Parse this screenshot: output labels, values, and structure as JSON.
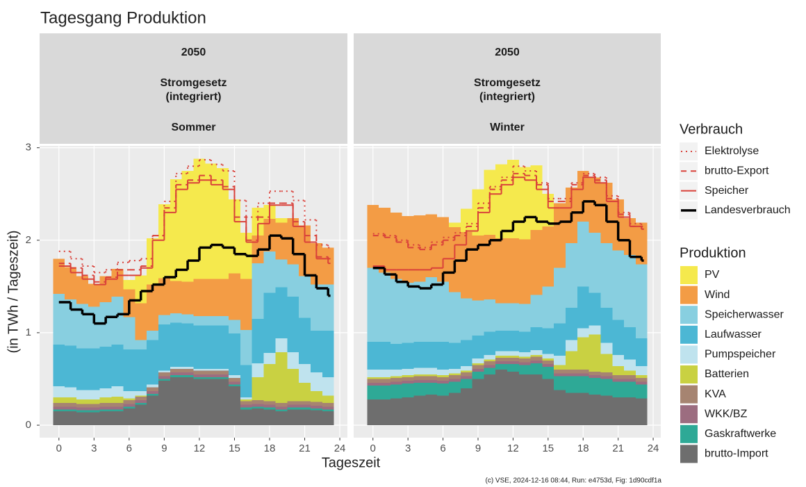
{
  "title": "Tagesgang Produktion",
  "x_label": "Tageszeit",
  "y_label": "(in TWh / Tageszeit)",
  "legend_titles": [
    "Verbrauch",
    "Produktion"
  ],
  "caption": "(c) VSE, 2024-12-16 08:44, Run: e4753d, Fig: 1d90cdf1a",
  "chart_data": [
    {
      "type": "stacked-step-area",
      "strip": [
        "2050",
        "Stromgesetz",
        "(integriert)",
        "Sommer"
      ],
      "x": [
        0,
        1,
        2,
        3,
        4,
        5,
        6,
        7,
        8,
        9,
        10,
        11,
        12,
        13,
        14,
        15,
        16,
        17,
        18,
        19,
        20,
        21,
        22,
        23
      ],
      "xlim": [
        -1.65,
        24.65
      ],
      "xticks": [
        0,
        3,
        6,
        9,
        12,
        15,
        18,
        21,
        24
      ],
      "ylim": [
        -0.135,
        3.02
      ],
      "yticks": [
        0,
        1,
        2,
        3
      ],
      "grid": true,
      "series": [
        {
          "name": "brutto-Import",
          "color": "#6e6e6e",
          "values": [
            0.15,
            0.15,
            0.14,
            0.14,
            0.15,
            0.15,
            0.18,
            0.22,
            0.32,
            0.48,
            0.52,
            0.52,
            0.5,
            0.5,
            0.5,
            0.42,
            0.17,
            0.18,
            0.17,
            0.15,
            0.17,
            0.17,
            0.16,
            0.15
          ]
        },
        {
          "name": "Gaskraftwerke",
          "color": "#2ea996",
          "values": [
            0.02,
            0.02,
            0.02,
            0.02,
            0.02,
            0.02,
            0.02,
            0.02,
            0.02,
            0.02,
            0.02,
            0.02,
            0.02,
            0.02,
            0.02,
            0.02,
            0.02,
            0.02,
            0.02,
            0.02,
            0.02,
            0.02,
            0.02,
            0.02
          ]
        },
        {
          "name": "WKK/BZ",
          "color": "#9c6d80",
          "values": [
            0.03,
            0.03,
            0.03,
            0.03,
            0.03,
            0.03,
            0.03,
            0.03,
            0.03,
            0.03,
            0.03,
            0.03,
            0.03,
            0.03,
            0.03,
            0.03,
            0.03,
            0.03,
            0.03,
            0.03,
            0.03,
            0.03,
            0.03,
            0.03
          ]
        },
        {
          "name": "KVA",
          "color": "#a68471",
          "values": [
            0.04,
            0.04,
            0.04,
            0.04,
            0.04,
            0.04,
            0.04,
            0.04,
            0.04,
            0.04,
            0.04,
            0.04,
            0.04,
            0.04,
            0.04,
            0.04,
            0.04,
            0.04,
            0.04,
            0.04,
            0.04,
            0.04,
            0.04,
            0.04
          ]
        },
        {
          "name": "Batterien",
          "color": "#c9d142",
          "values": [
            0.06,
            0.06,
            0.05,
            0.05,
            0.06,
            0.07,
            0.02,
            0.01,
            0,
            0,
            0,
            0,
            0,
            0,
            0,
            0,
            0.02,
            0.25,
            0.4,
            0.55,
            0.35,
            0.2,
            0.12,
            0.08
          ]
        },
        {
          "name": "Pumpspeicher",
          "color": "#bfe3ee",
          "values": [
            0.12,
            0.11,
            0.1,
            0.1,
            0.1,
            0.11,
            0.08,
            0.05,
            0.03,
            0.02,
            0.02,
            0.02,
            0.02,
            0.02,
            0.02,
            0.03,
            0.02,
            0.15,
            0.12,
            0.15,
            0.18,
            0.2,
            0.2,
            0.2
          ]
        },
        {
          "name": "Laufwasser",
          "color": "#4cb7d4",
          "values": [
            0.45,
            0.45,
            0.45,
            0.45,
            0.45,
            0.45,
            0.45,
            0.45,
            0.48,
            0.5,
            0.48,
            0.47,
            0.47,
            0.47,
            0.47,
            0.45,
            0.35,
            0.48,
            0.65,
            0.55,
            0.6,
            0.5,
            0.45,
            0.5
          ]
        },
        {
          "name": "Speicherwasser",
          "color": "#88cfe0",
          "values": [
            0.55,
            0.5,
            0.48,
            0.45,
            0.48,
            0.52,
            0.35,
            0.1,
            0.1,
            0.1,
            0.1,
            0.1,
            0.1,
            0.1,
            0.1,
            0.15,
            0.38,
            0.6,
            0.45,
            0.3,
            0.35,
            0.45,
            0.5,
            0.5
          ]
        },
        {
          "name": "Wind",
          "color": "#f39c45",
          "values": [
            0.38,
            0.35,
            0.3,
            0.25,
            0.28,
            0.3,
            0.3,
            0.4,
            0.5,
            0.4,
            0.35,
            0.35,
            0.4,
            0.4,
            0.4,
            0.5,
            0.55,
            0.3,
            0.35,
            0.4,
            0.5,
            0.55,
            0.45,
            0.4
          ]
        },
        {
          "name": "PV",
          "color": "#f5e94d",
          "values": [
            0,
            0,
            0,
            0,
            0,
            0,
            0.1,
            0.3,
            0.5,
            0.8,
            1.1,
            1.2,
            1.3,
            1.25,
            1.2,
            0.8,
            0.5,
            0.3,
            0.15,
            0.05,
            0,
            0,
            0,
            0
          ]
        }
      ],
      "lines": [
        {
          "name": "Elektrolyse",
          "color": "#d9413a",
          "linestyle": "dotted",
          "values": [
            1.88,
            1.8,
            1.72,
            1.65,
            1.68,
            1.76,
            1.78,
            1.8,
            2.05,
            2.42,
            2.72,
            2.8,
            2.87,
            2.82,
            2.75,
            2.43,
            2.25,
            2.4,
            2.53,
            2.53,
            2.43,
            2.22,
            1.95,
            1.92
          ]
        },
        {
          "name": "brutto-Export",
          "color": "#d9413a",
          "linestyle": "dashed",
          "values": [
            1.75,
            1.7,
            1.62,
            1.55,
            1.6,
            1.68,
            1.68,
            1.72,
            2.05,
            2.35,
            2.6,
            2.65,
            2.7,
            2.65,
            2.58,
            2.25,
            2.0,
            2.25,
            2.4,
            2.4,
            2.2,
            2.05,
            1.82,
            1.8
          ]
        },
        {
          "name": "Speicher",
          "color": "#d9413a",
          "linestyle": "solid",
          "values": [
            1.72,
            1.65,
            1.58,
            1.52,
            1.58,
            1.62,
            1.62,
            1.7,
            2.0,
            2.3,
            2.55,
            2.62,
            2.65,
            2.6,
            2.55,
            2.2,
            1.98,
            2.18,
            2.38,
            2.38,
            2.15,
            1.98,
            1.8,
            1.75
          ]
        },
        {
          "name": "Landesverbrauch",
          "color": "#000000",
          "linestyle": "thick",
          "values": [
            1.33,
            1.25,
            1.2,
            1.1,
            1.17,
            1.2,
            1.35,
            1.45,
            1.52,
            1.6,
            1.68,
            1.78,
            1.92,
            1.95,
            1.92,
            1.85,
            1.83,
            1.9,
            2.05,
            2.02,
            1.85,
            1.62,
            1.48,
            1.4
          ]
        }
      ]
    },
    {
      "type": "stacked-step-area",
      "strip": [
        "2050",
        "Stromgesetz",
        "(integriert)",
        "Winter"
      ],
      "x": [
        0,
        1,
        2,
        3,
        4,
        5,
        6,
        7,
        8,
        9,
        10,
        11,
        12,
        13,
        14,
        15,
        16,
        17,
        18,
        19,
        20,
        21,
        22,
        23
      ],
      "xlim": [
        -1.65,
        24.65
      ],
      "xticks": [
        0,
        3,
        6,
        9,
        12,
        15,
        18,
        21,
        24
      ],
      "ylim": [
        -0.135,
        3.02
      ],
      "yticks": [
        0,
        1,
        2,
        3
      ],
      "grid": true,
      "series": [
        {
          "name": "brutto-Import",
          "color": "#6e6e6e",
          "values": [
            0.28,
            0.28,
            0.29,
            0.3,
            0.32,
            0.33,
            0.32,
            0.35,
            0.4,
            0.5,
            0.55,
            0.6,
            0.58,
            0.55,
            0.55,
            0.5,
            0.38,
            0.35,
            0.35,
            0.33,
            0.32,
            0.3,
            0.3,
            0.29
          ]
        },
        {
          "name": "Gaskraftwerke",
          "color": "#2ea996",
          "values": [
            0.15,
            0.15,
            0.15,
            0.15,
            0.14,
            0.13,
            0.13,
            0.12,
            0.1,
            0.08,
            0.07,
            0.06,
            0.08,
            0.1,
            0.12,
            0.13,
            0.15,
            0.18,
            0.18,
            0.18,
            0.18,
            0.17,
            0.17,
            0.15
          ]
        },
        {
          "name": "WKK/BZ",
          "color": "#9c6d80",
          "values": [
            0.03,
            0.03,
            0.03,
            0.03,
            0.03,
            0.03,
            0.03,
            0.03,
            0.03,
            0.03,
            0.03,
            0.03,
            0.03,
            0.03,
            0.03,
            0.03,
            0.03,
            0.03,
            0.03,
            0.03,
            0.03,
            0.03,
            0.03,
            0.03
          ]
        },
        {
          "name": "KVA",
          "color": "#a68471",
          "values": [
            0.04,
            0.04,
            0.04,
            0.04,
            0.04,
            0.04,
            0.04,
            0.04,
            0.04,
            0.04,
            0.04,
            0.04,
            0.04,
            0.04,
            0.04,
            0.04,
            0.04,
            0.04,
            0.04,
            0.04,
            0.04,
            0.04,
            0.04,
            0.04
          ]
        },
        {
          "name": "Batterien",
          "color": "#c9d142",
          "values": [
            0.02,
            0.02,
            0.02,
            0.02,
            0.02,
            0.02,
            0.02,
            0.02,
            0.02,
            0.02,
            0.02,
            0.02,
            0.02,
            0.02,
            0.02,
            0.02,
            0.05,
            0.2,
            0.35,
            0.4,
            0.2,
            0.1,
            0.05,
            0.03
          ]
        },
        {
          "name": "Pumpspeicher",
          "color": "#bfe3ee",
          "values": [
            0.08,
            0.08,
            0.07,
            0.07,
            0.07,
            0.07,
            0.06,
            0.05,
            0.05,
            0.05,
            0.05,
            0.05,
            0.05,
            0.05,
            0.05,
            0.05,
            0.1,
            0.12,
            0.1,
            0.1,
            0.12,
            0.12,
            0.12,
            0.1
          ]
        },
        {
          "name": "Laufwasser",
          "color": "#4cb7d4",
          "values": [
            0.3,
            0.3,
            0.28,
            0.28,
            0.28,
            0.28,
            0.3,
            0.28,
            0.28,
            0.25,
            0.25,
            0.22,
            0.22,
            0.22,
            0.25,
            0.28,
            0.35,
            0.35,
            0.45,
            0.35,
            0.38,
            0.38,
            0.35,
            0.3
          ]
        },
        {
          "name": "Speicherwasser",
          "color": "#88cfe0",
          "values": [
            0.8,
            0.75,
            0.7,
            0.65,
            0.65,
            0.7,
            0.65,
            0.55,
            0.45,
            0.38,
            0.35,
            0.3,
            0.3,
            0.3,
            0.35,
            0.45,
            0.6,
            0.7,
            0.7,
            0.65,
            0.7,
            0.75,
            0.78,
            0.8
          ]
        },
        {
          "name": "Wind",
          "color": "#f39c45",
          "values": [
            0.68,
            0.7,
            0.72,
            0.72,
            0.72,
            0.68,
            0.7,
            0.7,
            0.72,
            0.7,
            0.7,
            0.7,
            0.7,
            0.7,
            0.7,
            0.65,
            0.7,
            0.6,
            0.55,
            0.6,
            0.65,
            0.55,
            0.4,
            0.45
          ]
        },
        {
          "name": "PV",
          "color": "#f5e94d",
          "values": [
            0,
            0,
            0,
            0,
            0,
            0,
            0,
            0.05,
            0.25,
            0.5,
            0.7,
            0.8,
            0.85,
            0.78,
            0.7,
            0.35,
            0,
            0,
            0,
            0,
            0,
            0,
            0,
            0
          ]
        }
      ],
      "lines": [
        {
          "name": "Elektrolyse",
          "color": "#d9413a",
          "linestyle": "dotted",
          "values": [
            2.07,
            2.05,
            2.0,
            1.95,
            1.92,
            1.98,
            2.03,
            2.08,
            2.18,
            2.4,
            2.58,
            2.68,
            2.8,
            2.75,
            2.62,
            2.45,
            2.45,
            2.62,
            2.72,
            2.68,
            2.48,
            2.3,
            2.18,
            2.15
          ]
        },
        {
          "name": "brutto-Export",
          "color": "#d9413a",
          "linestyle": "dashed",
          "values": [
            2.05,
            2.03,
            1.98,
            1.92,
            1.9,
            1.95,
            2.0,
            2.05,
            2.15,
            2.35,
            2.55,
            2.65,
            2.72,
            2.7,
            2.6,
            2.42,
            2.42,
            2.6,
            2.7,
            2.65,
            2.45,
            2.28,
            2.15,
            2.12
          ]
        },
        {
          "name": "Speicher",
          "color": "#d9413a",
          "linestyle": "solid",
          "values": [
            1.72,
            1.68,
            1.68,
            1.68,
            1.68,
            1.7,
            1.8,
            1.95,
            2.1,
            2.3,
            2.5,
            2.6,
            2.68,
            2.65,
            2.55,
            2.35,
            2.35,
            2.55,
            2.68,
            2.62,
            2.42,
            2.25,
            2.15,
            2.12
          ]
        },
        {
          "name": "Landesverbrauch",
          "color": "#000000",
          "linestyle": "thick",
          "values": [
            1.7,
            1.63,
            1.55,
            1.5,
            1.48,
            1.52,
            1.65,
            1.78,
            1.9,
            1.95,
            2.0,
            2.1,
            2.2,
            2.25,
            2.2,
            2.18,
            2.2,
            2.3,
            2.42,
            2.38,
            2.2,
            2.0,
            1.82,
            1.78
          ]
        }
      ]
    }
  ]
}
